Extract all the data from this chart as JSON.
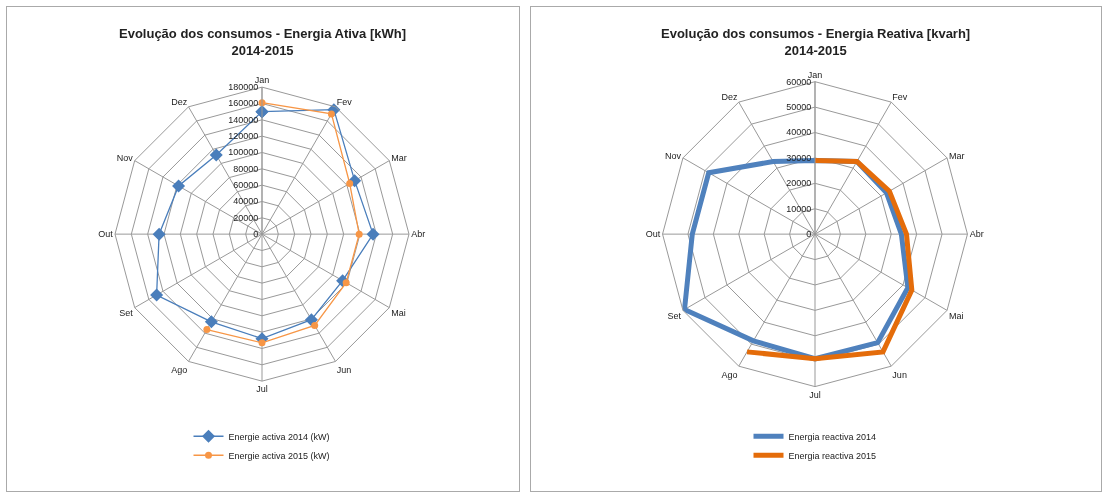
{
  "chart_data": [
    {
      "type": "radar",
      "title": "Evolução dos consumos - Energia Ativa [kWh]",
      "subtitle": "2014-2015",
      "categories": [
        "Jan",
        "Fev",
        "Mar",
        "Abr",
        "Mai",
        "Jun",
        "Jul",
        "Ago",
        "Set",
        "Out",
        "Nov",
        "Dez"
      ],
      "series": [
        {
          "name": "Energie activa 2014 (kW)",
          "color": "#4a7ebb",
          "marker": "diamond",
          "values": [
            150000,
            176000,
            131000,
            136000,
            114000,
            121000,
            128000,
            124000,
            149000,
            126000,
            118000,
            112000
          ]
        },
        {
          "name": "Energie activa 2015 (kW)",
          "color": "#f79646",
          "marker": "circle",
          "values": [
            161000,
            170000,
            124000,
            119000,
            119000,
            129000,
            133000,
            135000,
            null,
            null,
            null,
            null
          ]
        }
      ],
      "ylim": [
        0,
        180000
      ],
      "yticks": [
        0,
        20000,
        40000,
        60000,
        80000,
        100000,
        120000,
        140000,
        160000,
        180000
      ],
      "grid": true,
      "legend": "bottom"
    },
    {
      "type": "radar",
      "title": "Evolução dos consumos - Energia Reativa [kvarh]",
      "subtitle": "2014-2015",
      "categories": [
        "Jan",
        "Fev",
        "Mar",
        "Abr",
        "Mai",
        "Jun",
        "Jul",
        "Ago",
        "Set",
        "Out",
        "Nov",
        "Dez"
      ],
      "series": [
        {
          "name": "Energia reactiva 2014",
          "color": "#4f81bd",
          "values": [
            29000,
            33000,
            32500,
            34000,
            42200,
            49300,
            49000,
            48500,
            59300,
            48300,
            48300,
            33000
          ]
        },
        {
          "name": "Energia reactiva 2015",
          "color": "#e46c0a",
          "values": [
            29000,
            33000,
            33800,
            36000,
            44000,
            53500,
            49000,
            53500,
            null,
            null,
            null,
            null
          ]
        }
      ],
      "ylim": [
        0,
        60000
      ],
      "yticks": [
        0,
        10000,
        20000,
        30000,
        40000,
        50000,
        60000
      ],
      "grid": true,
      "legend": "bottom",
      "marker": "none"
    }
  ]
}
